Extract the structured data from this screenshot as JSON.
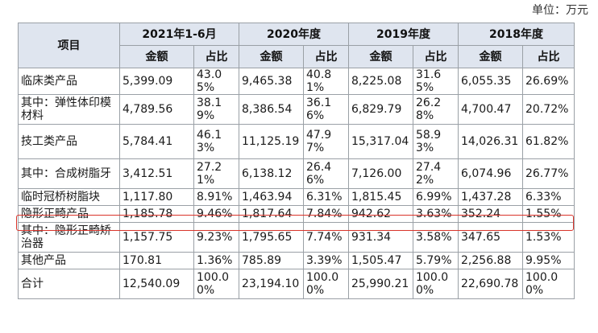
{
  "unit_label": "单位：万元",
  "header": {
    "item": "项目",
    "periods": [
      "2021年1-6月",
      "2020年度",
      "2019年度",
      "2018年度"
    ],
    "sub": [
      "金额",
      "占比"
    ]
  },
  "rows": [
    {
      "label": "临床类产品",
      "cells": [
        "5,399.09",
        "43.05%",
        "9,465.38",
        "40.81%",
        "8,225.08",
        "31.65%",
        "6,055.35",
        "26.69%"
      ]
    },
    {
      "label": "其中：弹性体印模 材料",
      "cells": [
        "4,789.56",
        "38.19%",
        "8,386.54",
        "36.16%",
        "6,829.79",
        "26.28%",
        "4,700.47",
        "20.72%"
      ]
    },
    {
      "label": "技工类产品",
      "cells": [
        "5,784.41",
        "46.13%",
        "11,125.19",
        "47.97%",
        "15,317.04",
        "58.93%",
        "14,026.31",
        "61.82%"
      ]
    },
    {
      "label": "其中：合成树脂牙",
      "cells": [
        "3,412.51",
        "27.21%",
        "6,138.12",
        "26.46%",
        "7,126.00",
        "27.42%",
        "6,074.96",
        "26.77%"
      ]
    },
    {
      "label": "临时冠桥树脂块",
      "cells": [
        "1,117.80",
        "8.91%",
        "1,463.94",
        "6.31%",
        "1,815.45",
        "6.99%",
        "1,437.28",
        "6.33%"
      ]
    },
    {
      "label": "隐形正畸产品",
      "cells": [
        "1,185.78",
        "9.46%",
        "1,817.64",
        "7.84%",
        "942.62",
        "3.63%",
        "352.24",
        "1.55%"
      ]
    },
    {
      "label": "其中：隐形正畸矫 治器",
      "cells": [
        "1,157.75",
        "9.23%",
        "1,795.65",
        "7.74%",
        "931.34",
        "3.58%",
        "347.65",
        "1.53%"
      ]
    },
    {
      "label": "其他产品",
      "cells": [
        "170.81",
        "1.36%",
        "785.89",
        "3.39%",
        "1,505.47",
        "5.79%",
        "2,256.88",
        "9.95%"
      ]
    },
    {
      "label": "合计",
      "cells": [
        "12,540.09",
        "100.00%",
        "23,194.10",
        "100.00%",
        "25,990.21",
        "100.00%",
        "22,690.78",
        "100.00%"
      ]
    }
  ],
  "highlight_color": "#d9342b",
  "header_bg": "#dfe5ef"
}
